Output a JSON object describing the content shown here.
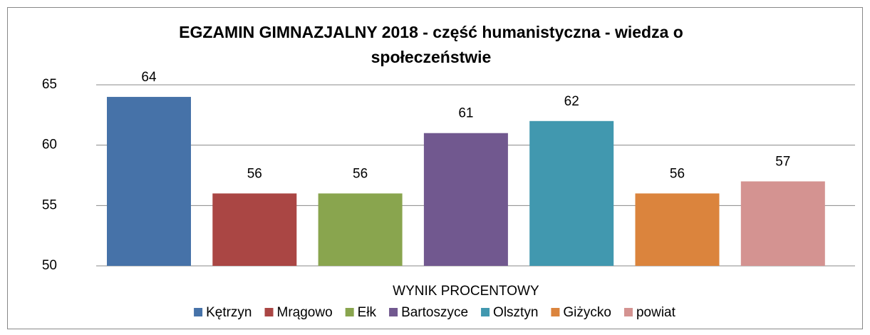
{
  "chart_data": {
    "type": "bar",
    "title": "EGZAMIN GIMNAZJALNY 2018 - część humanistyczna - wiedza o społeczeństwie",
    "categories": [
      "WYNIK PROCENTOWY"
    ],
    "series": [
      {
        "name": "Kętrzyn",
        "color": "#4672a8",
        "values": [
          64
        ]
      },
      {
        "name": "Mrągowo",
        "color": "#aa4644",
        "values": [
          56
        ]
      },
      {
        "name": "Ełk",
        "color": "#89a54e",
        "values": [
          56
        ]
      },
      {
        "name": "Bartoszyce",
        "color": "#71588f",
        "values": [
          61
        ]
      },
      {
        "name": "Olsztyn",
        "color": "#4198af",
        "values": [
          62
        ]
      },
      {
        "name": "Giżycko",
        "color": "#db843d",
        "values": [
          56
        ]
      },
      {
        "name": "powiat",
        "color": "#d49391",
        "values": [
          57
        ]
      }
    ],
    "ylim": [
      50,
      65
    ],
    "yticks": [
      50,
      55,
      60,
      65
    ],
    "grid": true,
    "legend": "bottom"
  }
}
